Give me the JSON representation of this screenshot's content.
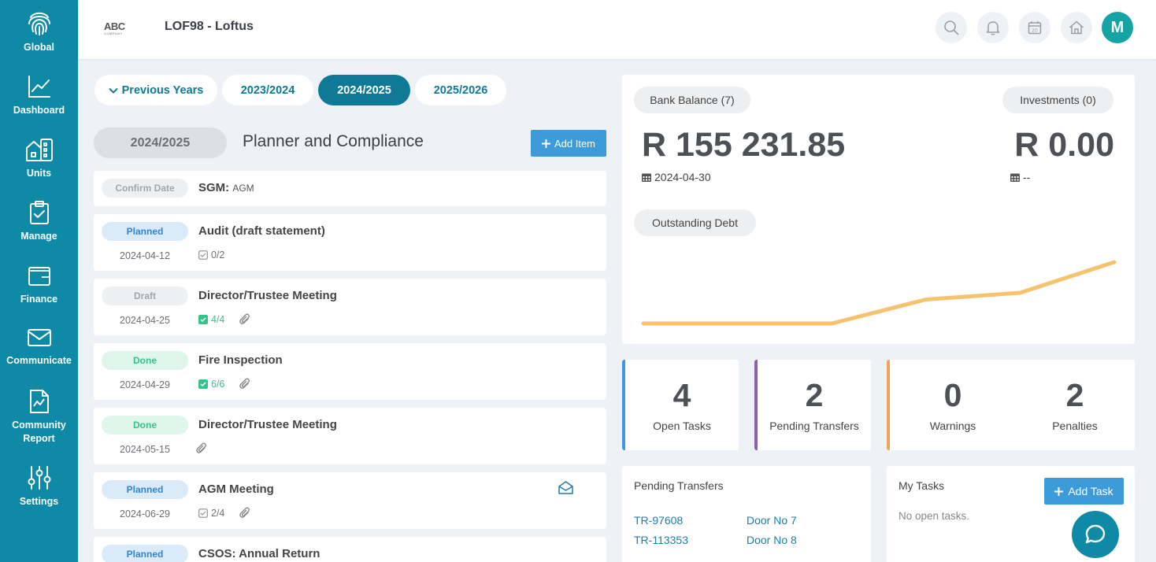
{
  "sidebar": {
    "items": [
      {
        "label": "Global",
        "icon": "fingerprint-icon"
      },
      {
        "label": "Dashboard",
        "icon": "line-chart-icon"
      },
      {
        "label": "Units",
        "icon": "building-icon"
      },
      {
        "label": "Manage",
        "icon": "clipboard-check-icon"
      },
      {
        "label": "Finance",
        "icon": "wallet-icon"
      },
      {
        "label": "Communicate",
        "icon": "envelope-icon"
      },
      {
        "label": "Community Report",
        "icon": "report-icon"
      },
      {
        "label": "Settings",
        "icon": "sliders-icon"
      }
    ]
  },
  "header": {
    "logo_text": "ABC",
    "logo_sub": "COMPANY",
    "title": "LOF98 - Loftus",
    "avatar_initial": "M"
  },
  "year_tabs": {
    "previous": "Previous Years",
    "tabs": [
      "2023/2024",
      "2024/2025",
      "2025/2026"
    ],
    "active": "2024/2025"
  },
  "planner": {
    "year": "2024/2025",
    "title": "Planner and Compliance",
    "add_item_label": "Add Item",
    "items": [
      {
        "status": "Confirm Date",
        "title": "SGM:",
        "subtitle": "AGM",
        "date": "",
        "tasks": "",
        "tasks_done": false,
        "attachment": false
      },
      {
        "status": "Planned",
        "title": "Audit (draft statement)",
        "date": "2024-04-12",
        "tasks": "0/2",
        "tasks_done": false,
        "attachment": false
      },
      {
        "status": "Draft",
        "title": "Director/Trustee Meeting",
        "date": "2024-04-25",
        "tasks": "4/4",
        "tasks_done": true,
        "attachment": true
      },
      {
        "status": "Done",
        "title": "Fire Inspection",
        "date": "2024-04-29",
        "tasks": "6/6",
        "tasks_done": true,
        "attachment": true
      },
      {
        "status": "Done",
        "title": "Director/Trustee Meeting",
        "date": "2024-05-15",
        "tasks": "",
        "tasks_done": false,
        "attachment": true
      },
      {
        "status": "Planned",
        "title": "AGM Meeting",
        "date": "2024-06-29",
        "tasks": "2/4",
        "tasks_done": false,
        "attachment": true,
        "email": true
      },
      {
        "status": "Planned",
        "title": "CSOS: Annual Return",
        "date": "",
        "tasks": ""
      }
    ]
  },
  "balances": {
    "bank_label": "Bank Balance (7)",
    "bank_amount": "R 155 231.85",
    "bank_date": "2024-04-30",
    "investments_label": "Investments (0)",
    "investments_amount": "R 0.00",
    "investments_date": "--",
    "debt_label": "Outstanding Debt",
    "line_color": "#f6c26e"
  },
  "chart_data": {
    "type": "line",
    "title": "",
    "x": [
      0,
      1,
      2,
      3,
      4,
      5
    ],
    "values": [
      0,
      0,
      0,
      0.47,
      0.6,
      1.2
    ],
    "note_units": "relative"
  },
  "stats": [
    {
      "value": "4",
      "label": "Open Tasks",
      "accent": "#3d9bd9"
    },
    {
      "value": "2",
      "label": "Pending Transfers",
      "accent": "#8e5bb5"
    },
    {
      "value": "0",
      "label": "Warnings",
      "accent": "#f0a35e"
    },
    {
      "value": "2",
      "label": "Penalties",
      "accent": ""
    }
  ],
  "pending_transfers": {
    "title": "Pending Transfers",
    "rows": [
      {
        "ref": "TR-97608",
        "unit": "Door No 7"
      },
      {
        "ref": "TR-113353",
        "unit": "Door No 8"
      }
    ]
  },
  "my_tasks": {
    "title": "My Tasks",
    "add_label": "Add Task",
    "empty": "No open tasks."
  }
}
